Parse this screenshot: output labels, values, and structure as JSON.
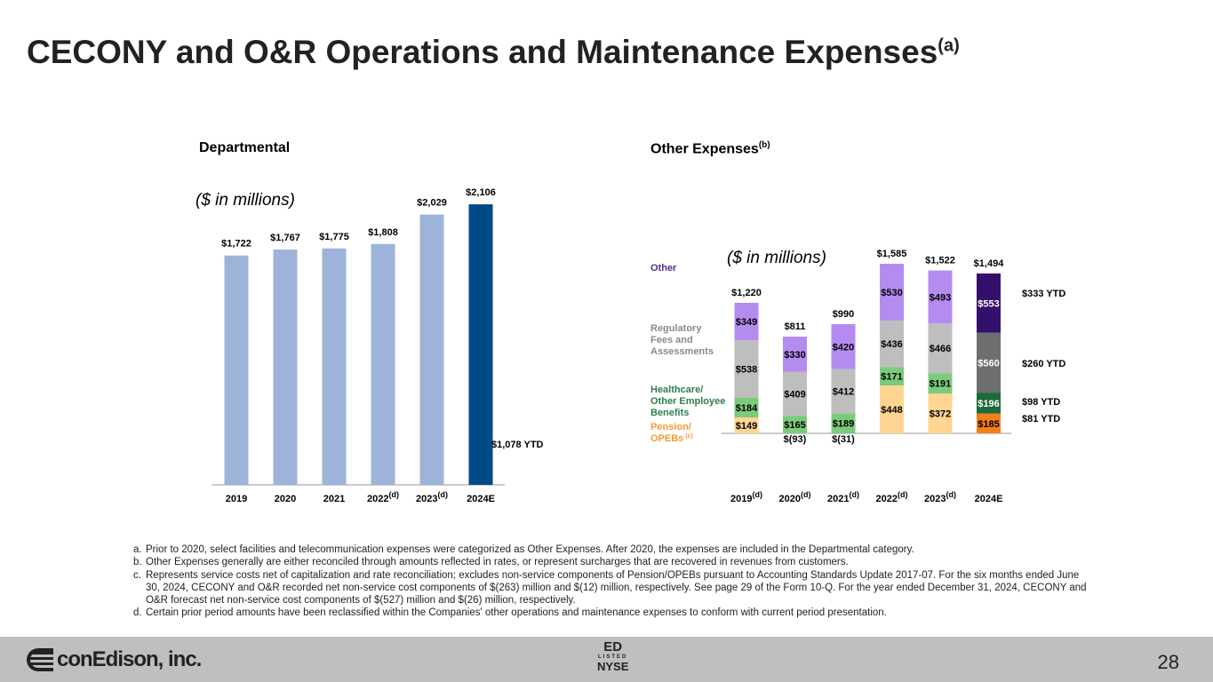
{
  "title": "CECONY and O&R Operations and Maintenance Expenses",
  "title_sup": "(a)",
  "footer": {
    "logo_text": "conEdison, inc.",
    "ticker": "ED",
    "listed": "LISTED",
    "exchange": "NYSE",
    "page": "28"
  },
  "notes": [
    {
      "k": "a.",
      "t": "Prior to 2020, select facilities and telecommunication expenses were categorized as Other Expenses. After 2020, the expenses are included in the Departmental category."
    },
    {
      "k": "b.",
      "t": "Other Expenses generally are either reconciled through amounts reflected in rates, or represent surcharges that are recovered in revenues from customers."
    },
    {
      "k": "c.",
      "t": "Represents service costs net of capitalization and rate reconciliation; excludes non-service components of Pension/OPEBs pursuant to Accounting Standards Update 2017-07. For the six months ended June 30, 2024, CECONY and O&R recorded net non-service cost components of $(263) million and $(12) million, respectively. See page 29 of the Form 10-Q. For the year ended December 31, 2024, CECONY and O&R forecast net non-service cost components of $(527) million and $(26) million, respectively."
    },
    {
      "k": "d.",
      "t": "Certain prior period amounts have been reclassified within the Companies' other operations and maintenance expenses to conform with current period presentation."
    }
  ],
  "chart_data": [
    {
      "type": "bar",
      "title": "Departmental",
      "unit_label": "($ in millions)",
      "categories": [
        "2019",
        "2020",
        "2021",
        "2022",
        "2023",
        "2024E"
      ],
      "cat_sup": [
        "",
        "",
        "",
        "(d)",
        "(d)",
        ""
      ],
      "values": [
        1722,
        1767,
        1775,
        1808,
        2029,
        2106
      ],
      "labels": [
        "$1,722",
        "$1,767",
        "$1,775",
        "$1,808",
        "$2,029",
        "$2,106"
      ],
      "ytd_label": "$1,078 YTD",
      "colors": {
        "actual": "#9DB3DA",
        "estimate": "#004B87"
      }
    },
    {
      "type": "bar",
      "stacked": true,
      "title": "Other Expenses",
      "title_sup": "(b)",
      "unit_label": "($ in millions)",
      "categories": [
        "2019",
        "2020",
        "2021",
        "2022",
        "2023",
        "2024E"
      ],
      "cat_sup": [
        "(d)",
        "(d)",
        "(d)",
        "(d)",
        "(d)",
        ""
      ],
      "totals": [
        1220,
        811,
        990,
        1585,
        1522,
        1494
      ],
      "total_labels": [
        "$1,220",
        "$811",
        "$990",
        "$1,585",
        "$1,522",
        "$1,494"
      ],
      "series": [
        {
          "name": "Pension/ OPEBs",
          "name_sup": "(c)",
          "values": [
            149,
            -93,
            -31,
            448,
            372,
            185
          ],
          "labels": [
            "$149",
            "$(93)",
            "$(31)",
            "$448",
            "$372",
            "$185"
          ],
          "color": "#FFD591",
          "color_est": "#F57F17",
          "legend_color": "#F39C34",
          "ytd": "$81 YTD"
        },
        {
          "name": "Healthcare/ Other Employee Benefits",
          "values": [
            184,
            165,
            189,
            171,
            191,
            196
          ],
          "labels": [
            "$184",
            "$165",
            "$189",
            "$171",
            "$191",
            "$196"
          ],
          "color": "#7CCB7C",
          "color_est": "#1D6B3C",
          "legend_color": "#2E7D4F",
          "ytd": "$98 YTD"
        },
        {
          "name": "Regulatory Fees and Assessments",
          "values": [
            538,
            409,
            412,
            436,
            466,
            560
          ],
          "labels": [
            "$538",
            "$409",
            "$412",
            "$436",
            "$466",
            "$560"
          ],
          "color": "#BEBEBE",
          "color_est": "#6E6E6E",
          "legend_color": "#8A8A8A",
          "ytd": "$260 YTD"
        },
        {
          "name": "Other",
          "values": [
            349,
            330,
            420,
            530,
            493,
            553
          ],
          "labels": [
            "$349",
            "$330",
            "$420",
            "$530",
            "$493",
            "$553"
          ],
          "color": "#B48CF0",
          "color_est": "#33106B",
          "legend_color": "#5B2A86",
          "ytd": "$333 YTD"
        }
      ]
    }
  ]
}
